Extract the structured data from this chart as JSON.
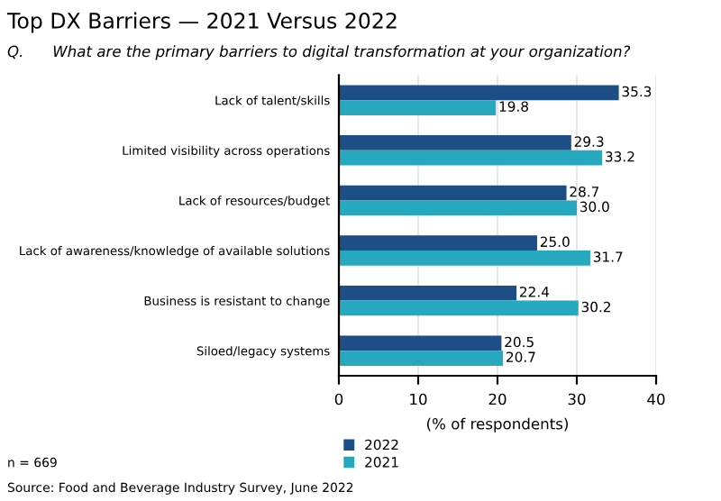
{
  "chart_data": {
    "type": "bar",
    "orientation": "horizontal",
    "title": "Top DX Barriers — 2021 Versus 2022",
    "subtitle": "Q.      What are the primary barriers to digital transformation at your organization?",
    "categories": [
      "Lack of talent/skills",
      "Limited visibility across operations",
      "Lack of resources/budget",
      "Lack of awareness/knowledge of available solutions",
      "Business is resistant to change",
      "Siloed/legacy systems"
    ],
    "series": [
      {
        "name": "2022",
        "color": "#1d4f86",
        "values": [
          35.3,
          29.3,
          28.7,
          25.0,
          22.4,
          20.5
        ],
        "value_labels": [
          "35.3",
          "29.3",
          "28.7",
          "25.0",
          "22.4",
          "20.5"
        ]
      },
      {
        "name": "2021",
        "color": "#26a9bf",
        "values": [
          19.8,
          33.2,
          30.0,
          31.7,
          30.2,
          20.7
        ],
        "value_labels": [
          "19.8",
          "33.2",
          "30.0",
          "31.7",
          "30.2",
          "20.7"
        ]
      }
    ],
    "xlabel": "(% of respondents)",
    "xlim": [
      0,
      40
    ],
    "xticks": [
      0,
      10,
      20,
      30,
      40
    ],
    "grid": "x",
    "legend": "bottom",
    "annotations": [
      "n = 669",
      "Source: Food and Beverage Industry Survey, June 2022"
    ]
  }
}
